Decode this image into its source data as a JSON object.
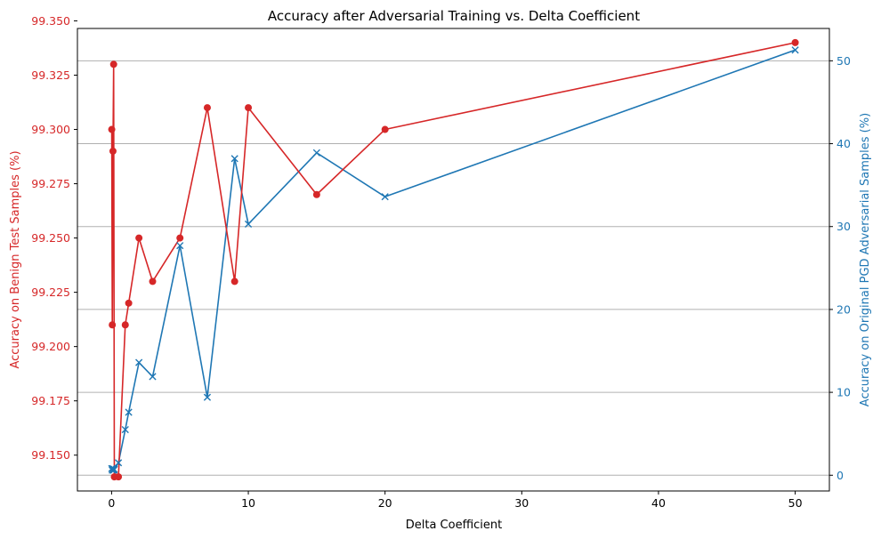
{
  "chart_data": {
    "type": "line",
    "title": "Accuracy after Adversarial Training vs. Delta Coefficient",
    "xlabel": "Delta Coefficient",
    "x_ticks": [
      0,
      10,
      20,
      30,
      40,
      50
    ],
    "xlim": [
      -2.5,
      52.5
    ],
    "grid": "horizontal (right axis)",
    "x": [
      0.01,
      0.05,
      0.1,
      0.15,
      0.2,
      0.5,
      1,
      1.25,
      2,
      3,
      5,
      7,
      9,
      10,
      15,
      20,
      50
    ],
    "series": [
      {
        "name": "Accuracy on Benign Test Samples (%)",
        "axis": "left",
        "color": "#d62728",
        "marker": "circle",
        "values": [
          99.3,
          99.21,
          99.29,
          99.33,
          99.14,
          99.14,
          99.21,
          99.22,
          99.25,
          99.23,
          99.25,
          99.31,
          99.23,
          99.31,
          99.27,
          99.3,
          99.34
        ]
      },
      {
        "name": "Accuracy on Original PGD Adversarial Samples (%)",
        "axis": "right",
        "color": "#1f77b4",
        "marker": "x",
        "values": [
          0.8,
          0.6,
          0.8,
          0.6,
          0.7,
          1.5,
          5.5,
          7.6,
          13.6,
          11.9,
          27.7,
          9.4,
          38.2,
          30.3,
          38.9,
          33.6,
          51.3
        ]
      }
    ],
    "left_axis": {
      "label": "Accuracy on Benign Test Samples (%)",
      "ylim": [
        99.1335,
        99.3465
      ],
      "ticks": [
        "99.150",
        "99.175",
        "99.200",
        "99.225",
        "99.250",
        "99.275",
        "99.300",
        "99.325",
        "99.350"
      ],
      "color": "#d62728"
    },
    "right_axis": {
      "label": "Accuracy on Original PGD Adversarial Samples (%)",
      "ylim": [
        -1.9,
        53.9
      ],
      "ticks": [
        "0",
        "10",
        "20",
        "30",
        "40",
        "50"
      ],
      "color": "#1f77b4"
    }
  }
}
